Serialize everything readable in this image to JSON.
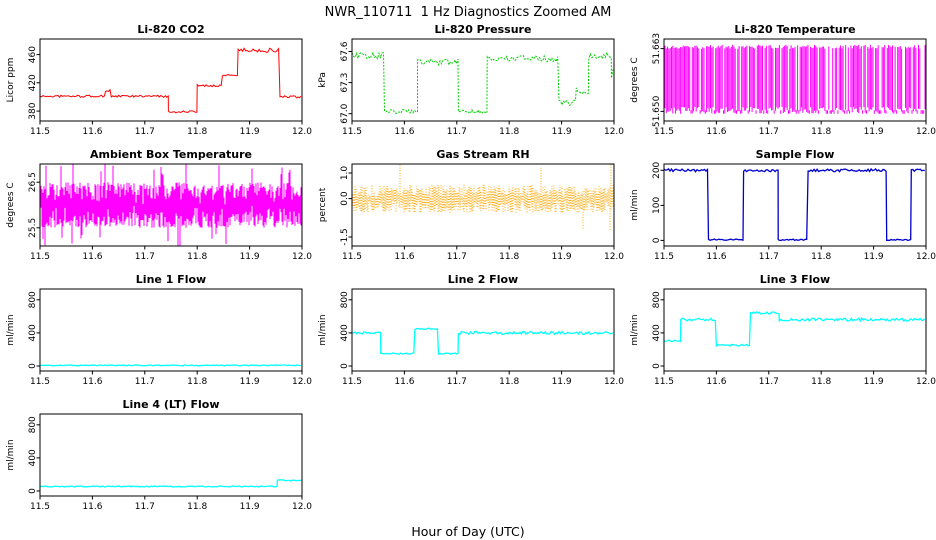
{
  "page_title": "NWR_110711  1 Hz Diagnostics Zoomed AM",
  "x_axis": {
    "label": "Hour of Day (UTC)",
    "lim": [
      11.5,
      12.0
    ],
    "ticks": [
      {
        "v": 11.5,
        "label": "11.5"
      },
      {
        "v": 11.6,
        "label": "11.6"
      },
      {
        "v": 11.7,
        "label": "11.7"
      },
      {
        "v": 11.8,
        "label": "11.8"
      },
      {
        "v": 11.9,
        "label": "11.9"
      },
      {
        "v": 12.0,
        "label": "12.0"
      }
    ]
  },
  "chart_data": [
    {
      "id": "li820-co2",
      "type": "line",
      "title": "Li-820 CO2",
      "ylabel": "Licor ppm",
      "color": "#ff0000",
      "ylim": [
        366,
        482
      ],
      "yticks": [
        {
          "v": 380,
          "label": "380"
        },
        {
          "v": 420,
          "label": "420"
        },
        {
          "v": 460,
          "label": "460"
        }
      ],
      "render": "steps",
      "stroke_width": 1,
      "segments": [
        [
          11.5,
          11.625,
          401,
          1.5
        ],
        [
          11.625,
          11.636,
          409,
          2.0
        ],
        [
          11.636,
          11.745,
          401,
          1.5
        ],
        [
          11.745,
          11.8,
          379,
          1.5
        ],
        [
          11.8,
          11.848,
          416,
          1.5
        ],
        [
          11.848,
          11.878,
          431,
          1.5
        ],
        [
          11.878,
          11.958,
          466,
          3.0
        ],
        [
          11.958,
          12.0,
          400,
          1.5
        ]
      ]
    },
    {
      "id": "li820-pressure",
      "type": "line",
      "title": "Li-820 Pressure",
      "ylabel": "kPa",
      "color": "#00cd00",
      "ylim": [
        66.93,
        67.72
      ],
      "yticks": [
        {
          "v": 67.0,
          "label": "67.0"
        },
        {
          "v": 67.3,
          "label": "67.3"
        },
        {
          "v": 67.6,
          "label": "67.6"
        }
      ],
      "render": "steps",
      "stroke_width": 1,
      "dash": "2,1.4",
      "segments": [
        [
          11.5,
          11.562,
          67.56,
          0.03
        ],
        [
          11.562,
          11.625,
          67.02,
          0.02
        ],
        [
          11.625,
          11.703,
          67.5,
          0.03
        ],
        [
          11.703,
          11.758,
          67.02,
          0.02
        ],
        [
          11.758,
          11.895,
          67.53,
          0.03
        ],
        [
          11.895,
          11.928,
          67.1,
          0.03
        ],
        [
          11.928,
          11.952,
          67.22,
          0.03
        ],
        [
          11.952,
          11.995,
          67.56,
          0.03
        ],
        [
          11.995,
          12.0,
          67.38,
          0.05
        ]
      ]
    },
    {
      "id": "li820-temperature",
      "type": "line",
      "title": "Li-820 Temperature",
      "ylabel": "degrees C",
      "color": "#ff00ff",
      "ylim": [
        51.648,
        51.665
      ],
      "yticks": [
        {
          "v": 51.65,
          "label": "51.650"
        },
        {
          "v": 51.663,
          "label": "51.663"
        }
      ],
      "render": "vlines",
      "stroke_width": 1,
      "vlines": {
        "lo": 51.6495,
        "hi": 51.6638,
        "density": 0.82
      }
    },
    {
      "id": "ambient-box-temperature",
      "type": "line",
      "title": "Ambient Box Temperature",
      "ylabel": "degrees C",
      "color": "#ff00ff",
      "ylim": [
        25.1,
        26.9
      ],
      "yticks": [
        {
          "v": 25.5,
          "label": "25.5"
        },
        {
          "v": 26.5,
          "label": "26.5"
        }
      ],
      "render": "band",
      "stroke_width": 1,
      "band": {
        "mean": 26.0,
        "amp": 0.5,
        "spike_amp": 0.85,
        "spike_prob": 0.04
      }
    },
    {
      "id": "gas-stream-rh",
      "type": "line",
      "title": "Gas Stream RH",
      "ylabel": "percent",
      "color": "#ffa500",
      "ylim": [
        -1.85,
        1.35
      ],
      "yticks": [
        {
          "v": -1.5,
          "label": "-1.5"
        },
        {
          "v": 0.0,
          "label": "0.0"
        },
        {
          "v": 1.0,
          "label": "1.0"
        }
      ],
      "render": "band",
      "stroke_width": 1,
      "dash": "1,1.6",
      "band": {
        "mean": 0.0,
        "amp": 0.55,
        "spike_amp": 1.35,
        "spike_prob": 0.02
      }
    },
    {
      "id": "sample-flow",
      "type": "line",
      "title": "Sample Flow",
      "ylabel": "ml/min",
      "color": "#0000cd",
      "ylim": [
        -16,
        218
      ],
      "yticks": [
        {
          "v": 0,
          "label": "0"
        },
        {
          "v": 100,
          "label": "100"
        },
        {
          "v": 200,
          "label": "200"
        }
      ],
      "render": "steps",
      "stroke_width": 1.3,
      "segments": [
        [
          11.5,
          11.585,
          200,
          4
        ],
        [
          11.585,
          11.652,
          2,
          2
        ],
        [
          11.652,
          11.718,
          200,
          4
        ],
        [
          11.718,
          11.775,
          2,
          2
        ],
        [
          11.775,
          11.925,
          200,
          4
        ],
        [
          11.925,
          11.972,
          2,
          2
        ],
        [
          11.972,
          12.0,
          200,
          4
        ]
      ]
    },
    {
      "id": "line-1-flow",
      "type": "line",
      "title": "Line 1 Flow",
      "ylabel": "ml/min",
      "color": "#00ffff",
      "ylim": [
        -60,
        930
      ],
      "yticks": [
        {
          "v": 0,
          "label": "0"
        },
        {
          "v": 400,
          "label": "400"
        },
        {
          "v": 800,
          "label": "800"
        }
      ],
      "render": "steps",
      "stroke_width": 1.3,
      "segments": [
        [
          11.5,
          12.0,
          8,
          5
        ]
      ]
    },
    {
      "id": "line-2-flow",
      "type": "line",
      "title": "Line 2 Flow",
      "ylabel": "ml/min",
      "color": "#00ffff",
      "ylim": [
        -60,
        930
      ],
      "yticks": [
        {
          "v": 0,
          "label": "0"
        },
        {
          "v": 400,
          "label": "400"
        },
        {
          "v": 800,
          "label": "800"
        }
      ],
      "render": "steps",
      "stroke_width": 1.3,
      "segments": [
        [
          11.5,
          11.555,
          400,
          12
        ],
        [
          11.555,
          11.62,
          150,
          8
        ],
        [
          11.62,
          11.665,
          450,
          12
        ],
        [
          11.665,
          11.703,
          150,
          8
        ],
        [
          11.703,
          12.0,
          400,
          18
        ]
      ]
    },
    {
      "id": "line-3-flow",
      "type": "line",
      "title": "Line 3 Flow",
      "ylabel": "ml/min",
      "color": "#00ffff",
      "ylim": [
        -60,
        930
      ],
      "yticks": [
        {
          "v": 0,
          "label": "0"
        },
        {
          "v": 400,
          "label": "400"
        },
        {
          "v": 800,
          "label": "800"
        }
      ],
      "render": "steps",
      "stroke_width": 1.3,
      "segments": [
        [
          11.5,
          11.532,
          300,
          12
        ],
        [
          11.532,
          11.6,
          560,
          15
        ],
        [
          11.6,
          11.665,
          250,
          12
        ],
        [
          11.665,
          11.72,
          640,
          15
        ],
        [
          11.72,
          12.0,
          560,
          18
        ]
      ]
    },
    {
      "id": "line-4-lt-flow",
      "type": "line",
      "title": "Line 4 (LT) Flow",
      "ylabel": "ml/min",
      "color": "#00ffff",
      "ylim": [
        -60,
        930
      ],
      "yticks": [
        {
          "v": 0,
          "label": "0"
        },
        {
          "v": 400,
          "label": "400"
        },
        {
          "v": 800,
          "label": "800"
        }
      ],
      "render": "steps",
      "stroke_width": 1.3,
      "segments": [
        [
          11.5,
          11.953,
          55,
          6
        ],
        [
          11.953,
          12.0,
          130,
          6
        ]
      ]
    }
  ]
}
